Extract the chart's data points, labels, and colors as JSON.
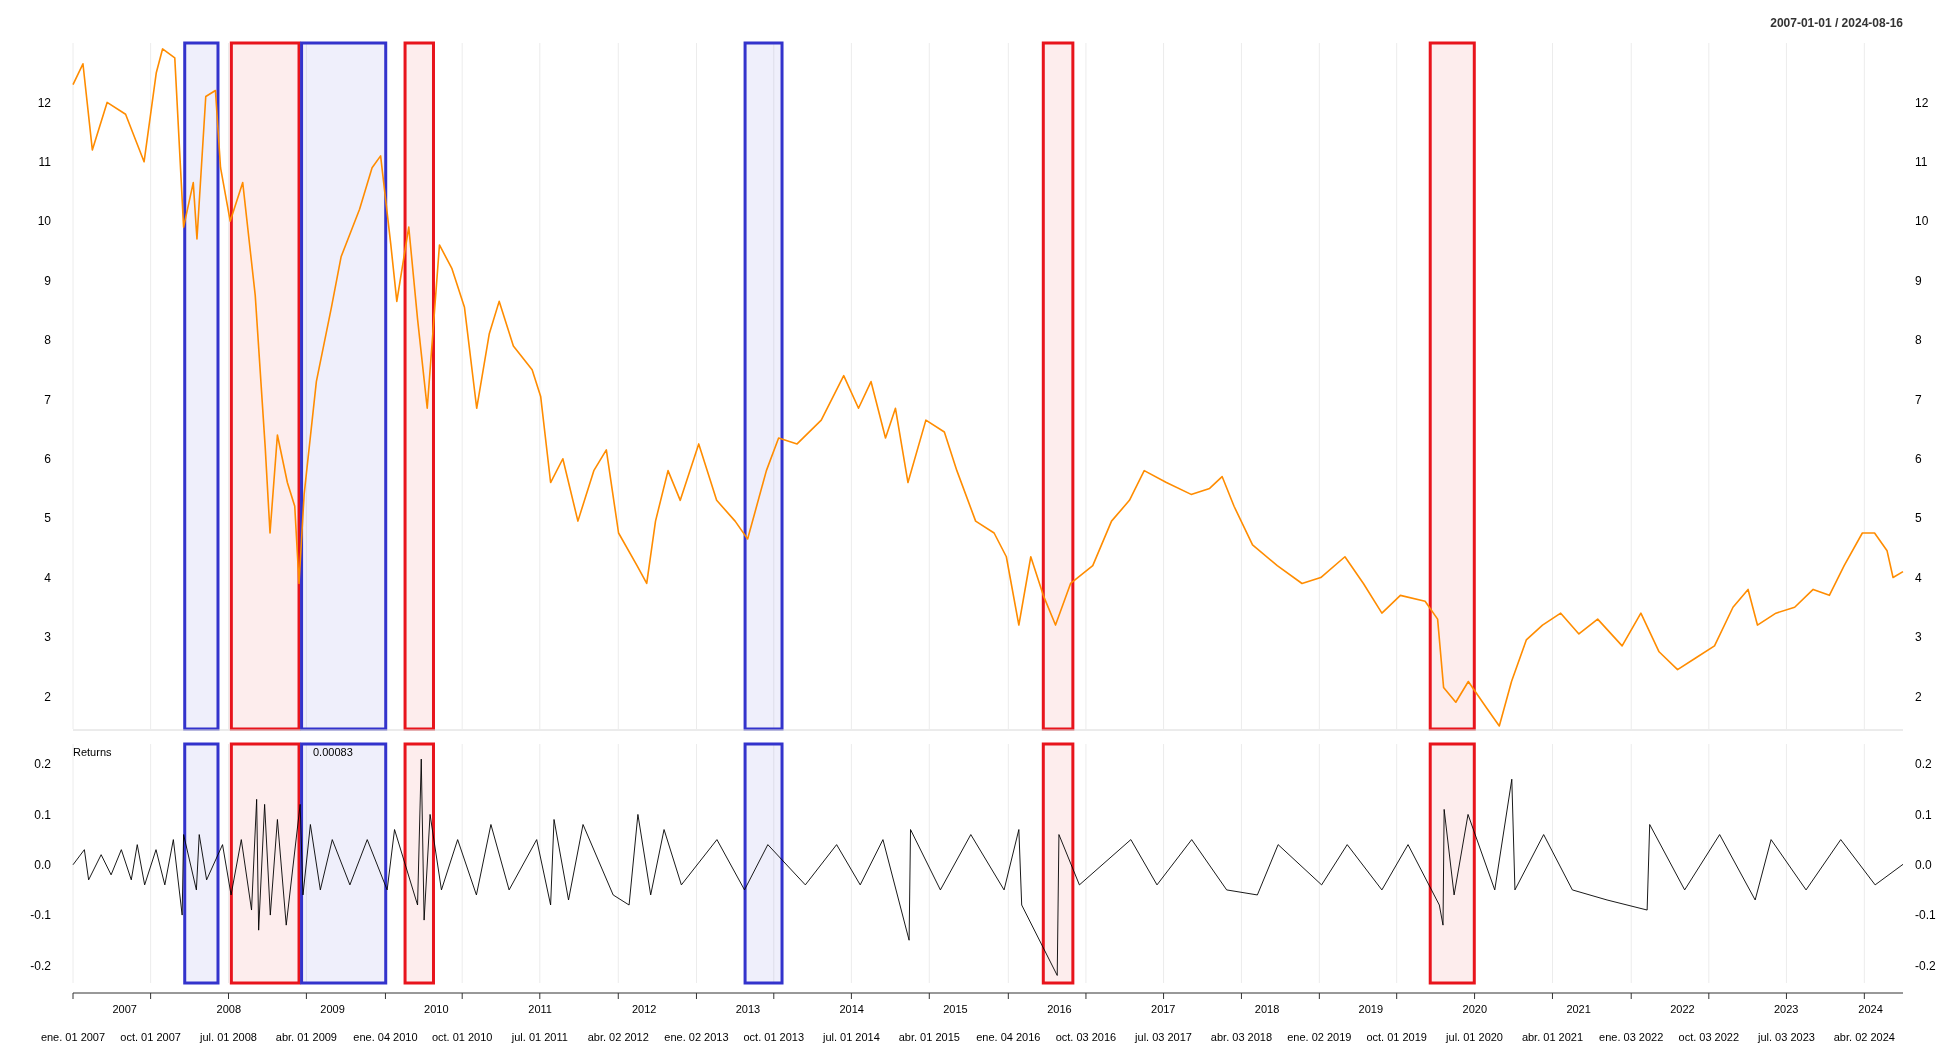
{
  "chart_data": [
    {
      "type": "line",
      "subtitle": "2007-01-01 / 2024-08-16",
      "x": [
        "2007-01-01",
        "2007-02-05",
        "2007-03-10",
        "2007-05-01",
        "2007-07-05",
        "2007-09-08",
        "2007-10-21",
        "2007-11-12",
        "2007-12-25",
        "2008-01-25",
        "2008-02-28",
        "2008-03-12",
        "2008-04-12",
        "2008-05-16",
        "2008-06-03",
        "2008-07-07",
        "2008-08-20",
        "2008-10-03",
        "2008-11-07",
        "2008-11-24",
        "2008-12-20",
        "2009-01-24",
        "2009-02-19",
        "2009-03-06",
        "2009-03-24",
        "2009-05-06",
        "2009-06-28",
        "2009-08-01",
        "2009-10-05",
        "2009-11-18",
        "2009-12-18",
        "2010-01-23",
        "2010-02-13",
        "2010-03-27",
        "2010-04-27",
        "2010-05-31",
        "2010-07-13",
        "2010-08-26",
        "2010-10-09",
        "2010-11-21",
        "2011-01-04",
        "2011-02-08",
        "2011-03-30",
        "2011-06-04",
        "2011-07-04",
        "2011-08-08",
        "2011-09-20",
        "2011-11-12",
        "2012-01-07",
        "2012-02-20",
        "2012-04-03",
        "2012-06-07",
        "2012-07-11",
        "2012-08-11",
        "2012-09-24",
        "2012-11-06",
        "2013-01-10",
        "2013-03-14",
        "2013-05-18",
        "2013-07-01",
        "2013-09-05",
        "2013-10-18",
        "2013-12-22",
        "2014-03-17",
        "2014-06-04",
        "2014-07-26",
        "2014-09-08",
        "2014-10-29",
        "2014-12-03",
        "2015-01-16",
        "2015-03-20",
        "2015-05-24",
        "2015-07-07",
        "2015-09-11",
        "2015-11-15",
        "2015-12-28",
        "2016-02-10",
        "2016-03-23",
        "2016-05-06",
        "2016-06-18",
        "2016-08-10",
        "2016-10-27",
        "2017-01-01",
        "2017-03-05",
        "2017-04-26",
        "2017-07-13",
        "2017-10-08",
        "2017-12-12",
        "2018-01-25",
        "2018-03-08",
        "2018-05-12",
        "2018-08-07",
        "2018-11-02",
        "2019-01-07",
        "2019-04-02",
        "2019-06-06",
        "2019-08-10",
        "2019-10-14",
        "2020-01-09",
        "2020-02-22",
        "2020-03-14",
        "2020-04-26",
        "2020-06-09",
        "2020-08-13",
        "2020-09-26",
        "2020-11-08",
        "2020-12-30",
        "2021-02-25",
        "2021-04-30",
        "2021-07-03",
        "2021-09-07",
        "2021-12-02",
        "2022-02-06",
        "2022-04-11",
        "2022-06-15",
        "2022-08-19",
        "2022-10-23",
        "2022-12-27",
        "2023-02-18",
        "2023-03-23",
        "2023-05-27",
        "2023-08-01",
        "2023-10-05",
        "2023-12-01",
        "2024-01-22",
        "2024-03-26",
        "2024-05-08",
        "2024-06-21",
        "2024-07-12",
        "2024-08-16"
      ],
      "series": [
        {
          "color": "#ff8c00",
          "values": [
            12.3,
            12.65,
            11.2,
            12.0,
            11.8,
            11.0,
            12.5,
            12.9,
            12.75,
            9.9,
            10.65,
            9.7,
            12.1,
            12.2,
            10.9,
            10.0,
            10.65,
            8.75,
            6.2,
            4.75,
            6.4,
            5.6,
            5.2,
            3.9,
            5.4,
            7.3,
            8.55,
            9.4,
            10.2,
            10.9,
            11.1,
            9.6,
            8.65,
            9.9,
            8.35,
            6.85,
            9.6,
            9.2,
            8.55,
            6.85,
            8.1,
            8.65,
            7.9,
            7.5,
            7.05,
            5.6,
            6.0,
            4.95,
            5.8,
            6.15,
            4.75,
            4.2,
            3.9,
            4.95,
            5.8,
            5.3,
            6.25,
            5.3,
            4.95,
            4.65,
            5.8,
            6.35,
            6.25,
            6.65,
            7.4,
            6.85,
            7.3,
            6.35,
            6.85,
            5.6,
            6.65,
            6.45,
            5.8,
            4.95,
            4.75,
            4.35,
            3.2,
            4.35,
            3.7,
            3.2,
            3.9,
            4.2,
            4.95,
            5.3,
            5.8,
            5.6,
            5.4,
            5.5,
            5.7,
            5.2,
            4.55,
            4.2,
            3.9,
            4.0,
            4.35,
            3.9,
            3.4,
            3.7,
            3.6,
            3.3,
            2.15,
            1.9,
            2.25,
            1.8,
            1.5,
            2.25,
            2.95,
            3.2,
            3.4,
            3.05,
            3.3,
            2.85,
            3.4,
            2.75,
            2.45,
            2.65,
            2.85,
            3.5,
            3.8,
            3.2,
            3.4,
            3.5,
            3.8,
            3.7,
            4.2,
            4.75,
            4.75,
            4.45,
            4.0,
            4.1
          ]
        }
      ],
      "xlim": [
        "2007-01-01",
        "2024-08-16"
      ],
      "ylim": [
        1.45,
        13
      ],
      "yticks": [
        2,
        3,
        4,
        5,
        6,
        7,
        8,
        9,
        10,
        11,
        12
      ],
      "y2lim": [
        1.45,
        13
      ],
      "y2ticks": [
        2,
        3,
        4,
        5,
        6,
        7,
        8,
        9,
        10,
        11,
        12
      ],
      "xticks": [
        {
          "value": "2007-01-01",
          "label": null
        },
        {
          "value": "2007-10-01",
          "label": null
        },
        {
          "value": "2008-07-01",
          "label": null
        },
        {
          "value": "2009-04-01",
          "label": null
        },
        {
          "value": "2010-01-04",
          "label": null
        },
        {
          "value": "2010-10-01",
          "label": null
        },
        {
          "value": "2011-07-01",
          "label": null
        },
        {
          "value": "2012-04-02",
          "label": null
        },
        {
          "value": "2013-01-02",
          "label": null
        },
        {
          "value": "2013-10-01",
          "label": null
        },
        {
          "value": "2014-07-01",
          "label": null
        },
        {
          "value": "2015-04-01",
          "label": null
        },
        {
          "value": "2016-01-04",
          "label": null
        },
        {
          "value": "2016-10-03",
          "label": null
        },
        {
          "value": "2017-07-03",
          "label": null
        },
        {
          "value": "2018-04-03",
          "label": null
        },
        {
          "value": "2019-01-02",
          "label": null
        },
        {
          "value": "2019-10-01",
          "label": null
        },
        {
          "value": "2020-07-01",
          "label": null
        },
        {
          "value": "2021-04-01",
          "label": null
        },
        {
          "value": "2022-01-03",
          "label": null
        },
        {
          "value": "2022-10-03",
          "label": null
        },
        {
          "value": "2023-07-03",
          "label": null
        },
        {
          "value": "2024-04-02",
          "label": null
        }
      ],
      "tick_labels": "y",
      "grid": "x",
      "bands": [
        {
          "axis": "x",
          "from": "2008-01-29",
          "to": "2008-05-25",
          "color": "#3333cc"
        },
        {
          "axis": "x",
          "from": "2008-07-11",
          "to": "2009-03-06",
          "color": "#e8141c"
        },
        {
          "axis": "x",
          "from": "2009-03-15",
          "to": "2010-01-05",
          "color": "#3333cc"
        },
        {
          "axis": "x",
          "from": "2010-03-14",
          "to": "2010-06-22",
          "color": "#e8141c"
        },
        {
          "axis": "x",
          "from": "2013-06-22",
          "to": "2013-10-30",
          "color": "#3333cc"
        },
        {
          "axis": "x",
          "from": "2016-05-06",
          "to": "2016-08-18",
          "color": "#e8141c"
        },
        {
          "axis": "x",
          "from": "2020-01-27",
          "to": "2020-06-30",
          "color": "#e8141c"
        }
      ]
    },
    {
      "type": "line",
      "title": "Returns",
      "annotations": [
        "0.00083"
      ],
      "x": [
        "2007-01-01",
        "2007-02-10",
        "2007-02-25",
        "2007-04-10",
        "2007-05-15",
        "2007-06-20",
        "2007-07-25",
        "2007-08-15",
        "2007-09-10",
        "2007-10-20",
        "2007-11-20",
        "2007-12-20",
        "2008-01-20",
        "2008-01-25",
        "2008-03-10",
        "2008-03-20",
        "2008-04-15",
        "2008-06-10",
        "2008-07-10",
        "2008-08-15",
        "2008-09-20",
        "2008-10-08",
        "2008-10-15",
        "2008-11-05",
        "2008-11-25",
        "2008-12-20",
        "2009-01-20",
        "2009-03-10",
        "2009-03-20",
        "2009-04-15",
        "2009-05-20",
        "2009-07-01",
        "2009-09-01",
        "2009-11-01",
        "2010-01-10",
        "2010-02-05",
        "2010-04-27",
        "2010-05-10",
        "2010-05-20",
        "2010-06-10",
        "2010-07-20",
        "2010-09-15",
        "2010-11-20",
        "2011-01-10",
        "2011-03-15",
        "2011-06-20",
        "2011-08-08",
        "2011-08-20",
        "2011-10-10",
        "2011-11-30",
        "2012-03-15",
        "2012-05-10",
        "2012-06-10",
        "2012-07-25",
        "2012-09-10",
        "2012-11-10",
        "2013-03-15",
        "2013-06-20",
        "2013-09-10",
        "2014-01-20",
        "2014-05-10",
        "2014-08-01",
        "2014-10-20",
        "2015-01-20",
        "2015-01-25",
        "2015-05-10",
        "2015-08-25",
        "2015-12-20",
        "2016-02-10",
        "2016-02-20",
        "2016-06-24",
        "2016-06-30",
        "2016-09-10",
        "2017-03-10",
        "2017-06-10",
        "2017-10-10",
        "2018-02-10",
        "2018-05-29",
        "2018-08-10",
        "2019-01-10",
        "2019-04-10",
        "2019-08-10",
        "2019-11-10",
        "2020-02-28",
        "2020-03-12",
        "2020-03-16",
        "2020-04-20",
        "2020-06-08",
        "2020-09-10",
        "2020-11-09",
        "2020-11-20",
        "2021-03-01",
        "2021-06-10",
        "2021-10-10",
        "2022-02-28",
        "2022-03-09",
        "2022-07-10",
        "2022-11-10",
        "2023-03-15",
        "2023-05-10",
        "2023-09-10",
        "2024-01-10",
        "2024-05-10",
        "2024-08-16"
      ],
      "series": [
        {
          "color": "#000000",
          "values": [
            0.0,
            0.03,
            -0.03,
            0.02,
            -0.02,
            0.03,
            -0.03,
            0.04,
            -0.04,
            0.03,
            -0.04,
            0.05,
            -0.1,
            0.06,
            -0.05,
            0.06,
            -0.03,
            0.04,
            -0.06,
            0.05,
            -0.09,
            0.13,
            -0.13,
            0.12,
            -0.1,
            0.09,
            -0.12,
            0.12,
            -0.06,
            0.08,
            -0.05,
            0.05,
            -0.04,
            0.05,
            -0.05,
            0.07,
            -0.08,
            0.21,
            -0.11,
            0.1,
            -0.05,
            0.05,
            -0.06,
            0.08,
            -0.05,
            0.05,
            -0.08,
            0.09,
            -0.07,
            0.08,
            -0.06,
            -0.08,
            0.1,
            -0.06,
            0.07,
            -0.04,
            0.05,
            -0.05,
            0.04,
            -0.04,
            0.04,
            -0.04,
            0.05,
            -0.15,
            0.07,
            -0.05,
            0.06,
            -0.05,
            0.07,
            -0.08,
            -0.22,
            0.06,
            -0.04,
            0.05,
            -0.04,
            0.05,
            -0.05,
            -0.06,
            0.04,
            -0.04,
            0.04,
            -0.05,
            0.04,
            -0.08,
            -0.12,
            0.11,
            -0.06,
            0.1,
            -0.05,
            0.17,
            -0.05,
            0.06,
            -0.05,
            -0.07,
            -0.09,
            0.08,
            -0.05,
            0.06,
            -0.07,
            0.05,
            -0.05,
            0.05,
            -0.04,
            0.00083
          ]
        }
      ],
      "xlim": [
        "2007-01-01",
        "2024-08-16"
      ],
      "ylim": [
        -0.235,
        0.24
      ],
      "yticks": [
        {
          "value": -0.2,
          "label": "-0.2"
        },
        {
          "value": -0.1,
          "label": "-0.1"
        },
        {
          "value": 0,
          "label": "0.0"
        },
        {
          "value": 0.1,
          "label": "0.1"
        },
        {
          "value": 0.2,
          "label": "0.2"
        }
      ],
      "y2lim": [
        -0.235,
        0.24
      ],
      "y2ticks": [
        {
          "value": -0.2,
          "label": "-0.2"
        },
        {
          "value": -0.1,
          "label": "-0.1"
        },
        {
          "value": 0,
          "label": "0.0"
        },
        {
          "value": 0.1,
          "label": "0.1"
        },
        {
          "value": 0.2,
          "label": "0.2"
        }
      ],
      "xticks": [
        {
          "value": "2007-01-01",
          "label": "ene. 01 2007"
        },
        {
          "value": "2007-10-01",
          "label": "oct. 01 2007"
        },
        {
          "value": "2008-07-01",
          "label": "jul. 01 2008"
        },
        {
          "value": "2009-04-01",
          "label": "abr. 01 2009"
        },
        {
          "value": "2010-01-04",
          "label": "ene. 04 2010"
        },
        {
          "value": "2010-10-01",
          "label": "oct. 01 2010"
        },
        {
          "value": "2011-07-01",
          "label": "jul. 01 2011"
        },
        {
          "value": "2012-04-02",
          "label": "abr. 02 2012"
        },
        {
          "value": "2013-01-02",
          "label": "ene. 02 2013"
        },
        {
          "value": "2013-10-01",
          "label": "oct. 01 2013"
        },
        {
          "value": "2014-07-01",
          "label": "jul. 01 2014"
        },
        {
          "value": "2015-04-01",
          "label": "abr. 01 2015"
        },
        {
          "value": "2016-01-04",
          "label": "ene. 04 2016"
        },
        {
          "value": "2016-10-03",
          "label": "oct. 03 2016"
        },
        {
          "value": "2017-07-03",
          "label": "jul. 03 2017"
        },
        {
          "value": "2018-04-03",
          "label": "abr. 03 2018"
        },
        {
          "value": "2019-01-02",
          "label": "ene. 02 2019"
        },
        {
          "value": "2019-10-01",
          "label": "oct. 01 2019"
        },
        {
          "value": "2020-07-01",
          "label": "jul. 01 2020"
        },
        {
          "value": "2021-04-01",
          "label": "abr. 01 2021"
        },
        {
          "value": "2022-01-03",
          "label": "ene. 03 2022"
        },
        {
          "value": "2022-10-03",
          "label": "oct. 03 2022"
        },
        {
          "value": "2023-07-03",
          "label": "jul. 03 2023"
        },
        {
          "value": "2024-04-02",
          "label": "abr. 02 2024"
        }
      ],
      "x2lim": [
        "2007-01-01",
        "2024-08-16"
      ],
      "x2ticks": [
        {
          "value": "2007-07-02",
          "label": "2007"
        },
        {
          "value": "2008-07-02",
          "label": "2008"
        },
        {
          "value": "2009-07-02",
          "label": "2009"
        },
        {
          "value": "2010-07-02",
          "label": "2010"
        },
        {
          "value": "2011-07-02",
          "label": "2011"
        },
        {
          "value": "2012-07-02",
          "label": "2012"
        },
        {
          "value": "2013-07-02",
          "label": "2013"
        },
        {
          "value": "2014-07-02",
          "label": "2014"
        },
        {
          "value": "2015-07-02",
          "label": "2015"
        },
        {
          "value": "2016-07-02",
          "label": "2016"
        },
        {
          "value": "2017-07-02",
          "label": "2017"
        },
        {
          "value": "2018-07-02",
          "label": "2018"
        },
        {
          "value": "2019-07-02",
          "label": "2019"
        },
        {
          "value": "2020-07-02",
          "label": "2020"
        },
        {
          "value": "2021-07-02",
          "label": "2021"
        },
        {
          "value": "2022-07-02",
          "label": "2022"
        },
        {
          "value": "2023-07-02",
          "label": "2023"
        },
        {
          "value": "2024-04-24",
          "label": "2024"
        }
      ],
      "grid": "x",
      "bands": [
        {
          "axis": "x",
          "from": "2008-01-29",
          "to": "2008-05-25",
          "color": "#3333cc"
        },
        {
          "axis": "x",
          "from": "2008-07-11",
          "to": "2009-03-06",
          "color": "#e8141c"
        },
        {
          "axis": "x",
          "from": "2009-03-15",
          "to": "2010-01-05",
          "color": "#3333cc"
        },
        {
          "axis": "x",
          "from": "2010-03-14",
          "to": "2010-06-22",
          "color": "#e8141c"
        },
        {
          "axis": "x",
          "from": "2013-06-22",
          "to": "2013-10-30",
          "color": "#3333cc"
        },
        {
          "axis": "x",
          "from": "2016-05-06",
          "to": "2016-08-18",
          "color": "#e8141c"
        },
        {
          "axis": "x",
          "from": "2020-01-27",
          "to": "2020-06-30",
          "color": "#e8141c"
        }
      ]
    }
  ]
}
